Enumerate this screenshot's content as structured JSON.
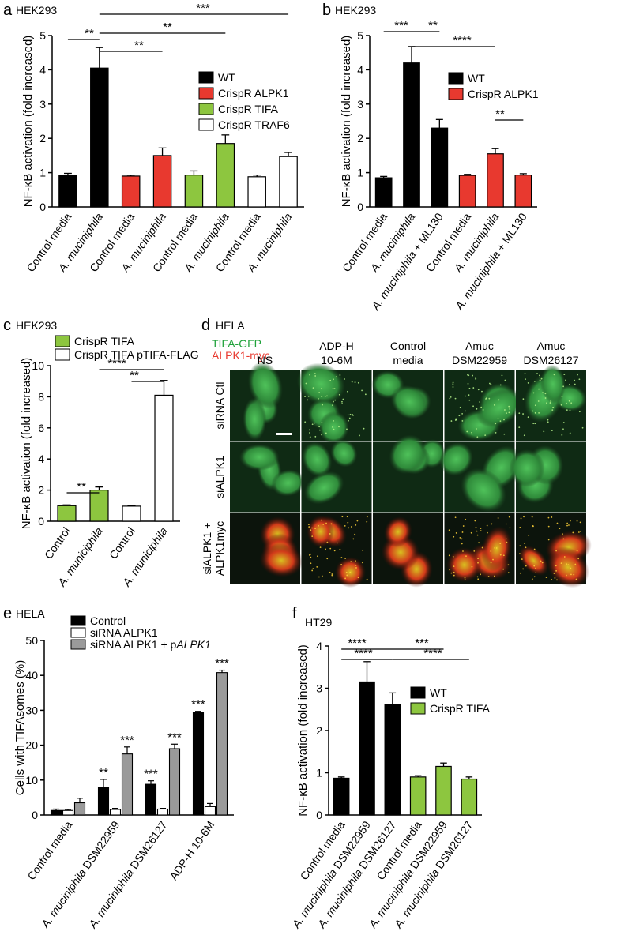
{
  "colors": {
    "black": "#000000",
    "red": "#e8392f",
    "green": "#8dc63f",
    "white": "#ffffff",
    "gray": "#9a9a9a"
  },
  "panels": {
    "a": {
      "letter": "a",
      "cell_line": "HEK293"
    },
    "b": {
      "letter": "b",
      "cell_line": "HEK293"
    },
    "c": {
      "letter": "c",
      "cell_line": "HEK293"
    },
    "d": {
      "letter": "d",
      "cell_line": "HELA"
    },
    "e": {
      "letter": "e",
      "cell_line": "HELA"
    },
    "f": {
      "letter": "f",
      "cell_line": "HT29"
    }
  },
  "microscopy": {
    "legend_green": "TIFA-GFP",
    "legend_red": "ALPK1-myc",
    "columns": [
      {
        "line1": "NS",
        "line2": ""
      },
      {
        "line1": "ADP-H",
        "line2": "10-6M"
      },
      {
        "line1": "Control",
        "line2": "media"
      },
      {
        "line1": "Amuc",
        "line2": "DSM22959"
      },
      {
        "line1": "Amuc",
        "line2": "DSM26127"
      }
    ],
    "rows": [
      {
        "line1": "siRNA Ctl",
        "line2": ""
      },
      {
        "line1": "siALPK1",
        "line2": ""
      },
      {
        "line1": "siALPK1 +",
        "line2": "ALPK1myc"
      }
    ]
  },
  "chart_data": [
    {
      "id": "a",
      "type": "bar",
      "ylabel": "NF-κB activation (fold increased)",
      "ylim": [
        0,
        5
      ],
      "yticks": [
        0,
        1,
        2,
        3,
        4,
        5
      ],
      "categories": [
        "Control media",
        "A. muciniphila",
        "Control media",
        "A. muciniphila",
        "Control media",
        "A. muciniphila",
        "Control media",
        "A. muciniphila"
      ],
      "values": [
        0.92,
        4.05,
        0.9,
        1.5,
        0.93,
        1.85,
        0.88,
        1.47
      ],
      "errors": [
        0.06,
        0.6,
        0.03,
        0.22,
        0.12,
        0.25,
        0.05,
        0.12
      ],
      "bar_colors": [
        "black",
        "black",
        "red",
        "red",
        "green",
        "green",
        "white",
        "white"
      ],
      "legend": [
        {
          "label": "WT",
          "color": "black"
        },
        {
          "label": "CrispR ALPK1",
          "color": "red"
        },
        {
          "label": "CrispR TIFA",
          "color": "green"
        },
        {
          "label": "CrispR TRAF6",
          "color": "white"
        }
      ],
      "significance": [
        {
          "from": 0,
          "to": 1,
          "label": "**"
        },
        {
          "from": 1,
          "to": 3,
          "label": "**"
        },
        {
          "from": 1,
          "to": 5,
          "label": "**"
        },
        {
          "from": 1,
          "to": 7,
          "label": "***"
        }
      ]
    },
    {
      "id": "b",
      "type": "bar",
      "ylabel": "NF-κB activation (fold increased)",
      "ylim": [
        0,
        5
      ],
      "yticks": [
        0,
        1,
        2,
        3,
        4,
        5
      ],
      "categories": [
        "Control media",
        "A. muciniphila",
        "A. muciniphila + ML130",
        "Control media",
        "A. muciniphila",
        "A. muciniphila + ML130"
      ],
      "values": [
        0.85,
        4.2,
        2.3,
        0.92,
        1.55,
        0.93
      ],
      "errors": [
        0.04,
        0.48,
        0.25,
        0.03,
        0.15,
        0.04
      ],
      "bar_colors": [
        "black",
        "black",
        "black",
        "red",
        "red",
        "red"
      ],
      "legend": [
        {
          "label": "WT",
          "color": "black"
        },
        {
          "label": "CrispR ALPK1",
          "color": "red"
        }
      ],
      "significance": [
        {
          "from": 0,
          "to": 1,
          "label": "***"
        },
        {
          "from": 1,
          "to": 2,
          "label": "**"
        },
        {
          "from": 1,
          "to": 4,
          "label": "****"
        },
        {
          "from": 4,
          "to": 5,
          "label": "**"
        }
      ]
    },
    {
      "id": "c",
      "type": "bar",
      "ylabel": "NF-κB activation (fold increased)",
      "ylim": [
        0,
        10
      ],
      "yticks": [
        0,
        2,
        4,
        6,
        8,
        10
      ],
      "categories": [
        "Control",
        "A. municiphila",
        "Control",
        "A. municiphila"
      ],
      "values": [
        1.0,
        2.0,
        0.97,
        8.1
      ],
      "errors": [
        0.05,
        0.2,
        0.04,
        0.95
      ],
      "bar_colors": [
        "green",
        "green",
        "white",
        "white"
      ],
      "legend": [
        {
          "label": "CrispR TIFA",
          "color": "green"
        },
        {
          "label": "CrispR TIFA pTIFA-FLAG",
          "color": "white"
        }
      ],
      "significance": [
        {
          "from": 0,
          "to": 1,
          "label": "**"
        },
        {
          "from": 1,
          "to": 3,
          "label": "****"
        },
        {
          "from": 2,
          "to": 3,
          "label": "**"
        }
      ]
    },
    {
      "id": "e",
      "type": "bar",
      "ylabel": "Cells with TIFAsomes (%)",
      "ylim": [
        0,
        50
      ],
      "yticks": [
        0,
        10,
        20,
        30,
        40,
        50
      ],
      "categories": [
        "Control media",
        "A. muciniphila DSM22959",
        "A. muciniphila DSM26127",
        "ADP-H 10-6M"
      ],
      "series": [
        {
          "name": "Control",
          "color": "black",
          "values": [
            1.3,
            8.0,
            8.8,
            29.3
          ],
          "errors": [
            0.4,
            2.2,
            1.0,
            0.4
          ],
          "stars": [
            "",
            "**",
            "***",
            "***"
          ]
        },
        {
          "name": "siRNA ALPK1",
          "color": "white",
          "values": [
            1.3,
            1.6,
            1.7,
            2.4
          ],
          "errors": [
            0.3,
            0.3,
            0.2,
            0.9
          ],
          "stars": [
            "",
            "",
            "",
            ""
          ]
        },
        {
          "name": "siRNA ALPK1 + pALPK1",
          "color": "gray",
          "values": [
            3.5,
            17.5,
            19.0,
            40.8
          ],
          "errors": [
            1.3,
            2.0,
            1.3,
            0.7
          ],
          "stars": [
            "",
            "***",
            "***",
            "***"
          ]
        }
      ]
    },
    {
      "id": "f",
      "type": "bar",
      "ylabel": "NF-κB activation (fold increased)",
      "ylim": [
        0,
        4
      ],
      "yticks": [
        0,
        1,
        2,
        3,
        4
      ],
      "categories": [
        "Control media",
        "A. muciniphila DSM22959",
        "A. muciniphila DSM26127",
        "Control media",
        "A. muciniphila DSM22959",
        "A. muciniphila DSM26127"
      ],
      "values": [
        0.87,
        3.15,
        2.62,
        0.9,
        1.15,
        0.85
      ],
      "errors": [
        0.03,
        0.48,
        0.27,
        0.03,
        0.08,
        0.05
      ],
      "bar_colors": [
        "black",
        "black",
        "black",
        "green",
        "green",
        "green"
      ],
      "legend": [
        {
          "label": "WT",
          "color": "black"
        },
        {
          "label": "CrispR TIFA",
          "color": "green"
        }
      ],
      "significance": [
        {
          "from": 0,
          "to": 1,
          "label": "****"
        },
        {
          "from": 0,
          "to": 2,
          "label": "****"
        },
        {
          "from": 1,
          "to": 4,
          "label": "***"
        },
        {
          "from": 2,
          "to": 5,
          "label": "****"
        }
      ]
    }
  ]
}
